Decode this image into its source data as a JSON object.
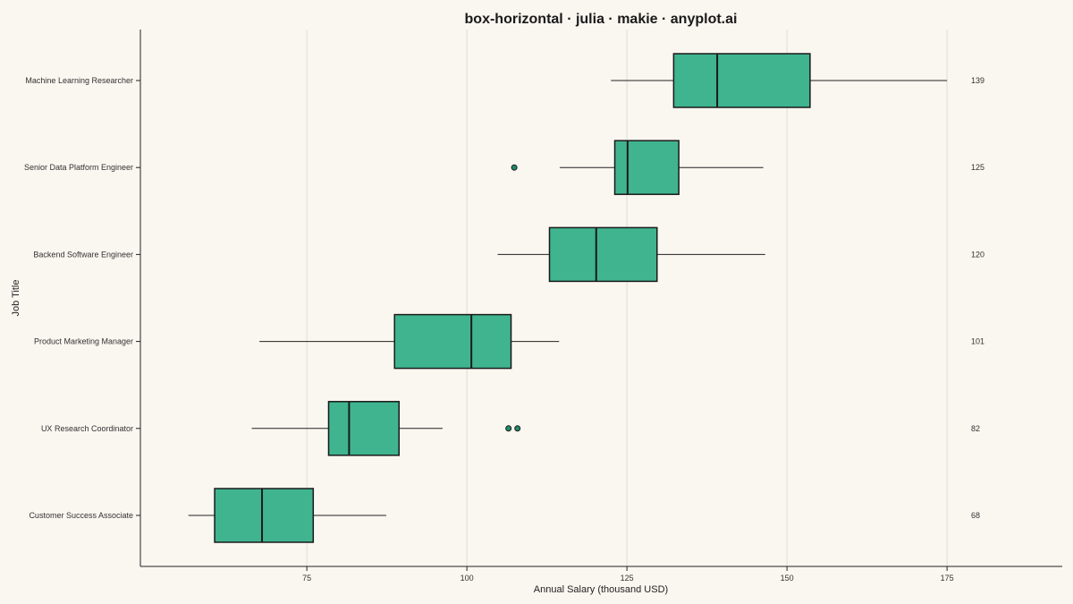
{
  "chart_data": {
    "type": "box",
    "orientation": "horizontal",
    "title": "box-horizontal · julia · makie · anyplot.ai",
    "xlabel": "Annual Salary (thousand USD)",
    "ylabel": "Job Title",
    "xlim": [
      49,
      193
    ],
    "xticks": [
      75,
      100,
      125,
      150,
      175
    ],
    "grid": "vertical",
    "colors": {
      "box_fill": "#3fb48f",
      "box_edge": "#1a1a1a",
      "outlier": "#1e8c6a",
      "grid": "#e0ddd7",
      "background": "#faf6f0"
    },
    "categories": [
      "Machine Learning Researcher",
      "Senior Data Platform Engineer",
      "Backend Software Engineer",
      "Product Marketing Manager",
      "UX Research Coordinator",
      "Customer Success Associate"
    ],
    "boxes": [
      {
        "category": "Machine Learning Researcher",
        "whisker_low": 122.5,
        "q1": 132.3,
        "median": 139.1,
        "q3": 153.6,
        "whisker_high": 175.0,
        "outliers": [],
        "median_label": "139"
      },
      {
        "category": "Senior Data Platform Engineer",
        "whisker_low": 114.5,
        "q1": 123.1,
        "median": 125.1,
        "q3": 133.1,
        "whisker_high": 146.3,
        "outliers": [
          107.4
        ],
        "median_label": "125"
      },
      {
        "category": "Backend Software Engineer",
        "whisker_low": 104.8,
        "q1": 112.9,
        "median": 120.2,
        "q3": 129.7,
        "whisker_high": 146.6,
        "outliers": [],
        "median_label": "120"
      },
      {
        "category": "Product Marketing Manager",
        "whisker_low": 67.6,
        "q1": 88.7,
        "median": 100.7,
        "q3": 106.9,
        "whisker_high": 114.4,
        "outliers": [],
        "median_label": "101"
      },
      {
        "category": "UX Research Coordinator",
        "whisker_low": 66.4,
        "q1": 78.4,
        "median": 81.6,
        "q3": 89.4,
        "whisker_high": 96.2,
        "outliers": [
          106.5,
          107.9
        ],
        "median_label": "82"
      },
      {
        "category": "Customer Success Associate",
        "whisker_low": 56.5,
        "q1": 60.6,
        "median": 68.0,
        "q3": 76.0,
        "whisker_high": 87.4,
        "outliers": [],
        "median_label": "68"
      }
    ]
  }
}
